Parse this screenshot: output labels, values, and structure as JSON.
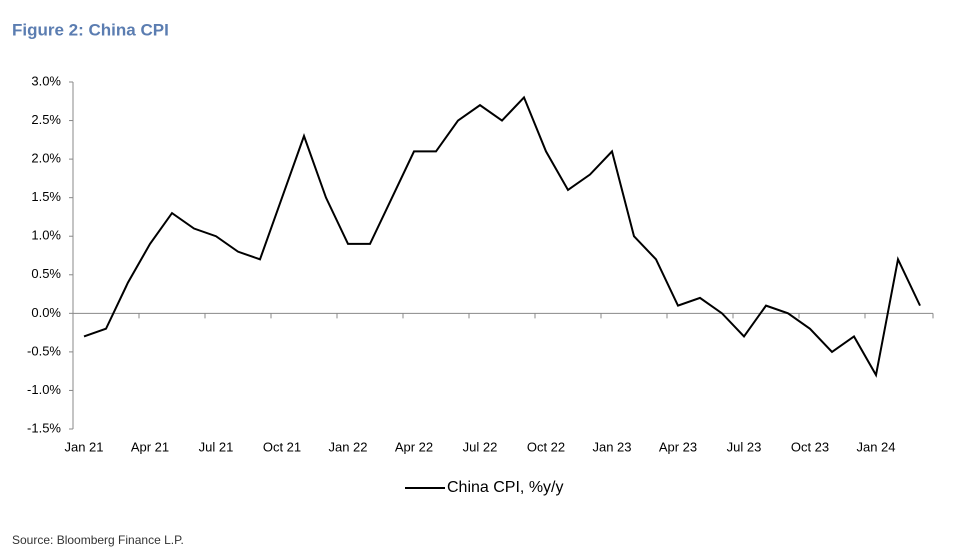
{
  "chart_data": {
    "type": "line",
    "title": "Figure 2: China CPI",
    "source": "Source: Bloomberg Finance L.P.",
    "categories": [
      "Jan 21",
      null,
      null,
      "Apr 21",
      null,
      null,
      "Jul 21",
      null,
      null,
      "Oct 21",
      null,
      null,
      "Jan 22",
      null,
      null,
      "Apr 22",
      null,
      null,
      "Jul 22",
      null,
      null,
      "Oct 22",
      null,
      null,
      "Jan 23",
      null,
      null,
      "Apr 23",
      null,
      null,
      "Jul 23",
      null,
      null,
      "Oct 23",
      null,
      null,
      "Jan 24",
      null,
      null
    ],
    "series": [
      {
        "name": "China CPI, %y/y",
        "color": "#000000",
        "values": [
          -0.3,
          -0.2,
          0.4,
          0.9,
          1.3,
          1.1,
          1.0,
          0.8,
          0.7,
          1.5,
          2.3,
          1.5,
          0.9,
          0.9,
          1.5,
          2.1,
          2.1,
          2.5,
          2.7,
          2.5,
          2.8,
          2.1,
          1.6,
          1.8,
          2.1,
          1.0,
          0.7,
          0.1,
          0.2,
          0.0,
          -0.3,
          0.1,
          0.0,
          -0.2,
          -0.5,
          -0.3,
          -0.8,
          0.7,
          0.1
        ]
      }
    ],
    "ylim": [
      -1.5,
      3.0
    ],
    "yticks": [
      {
        "value": -1.5,
        "label": "-1.5%"
      },
      {
        "value": -1.0,
        "label": "-1.0%"
      },
      {
        "value": -0.5,
        "label": "-0.5%"
      },
      {
        "value": 0,
        "label": "0.0%"
      },
      {
        "value": 0.5,
        "label": "0.5%"
      },
      {
        "value": 1.0,
        "label": "1.0%"
      },
      {
        "value": 1.5,
        "label": "1.5%"
      },
      {
        "value": 2.0,
        "label": "2.0%"
      },
      {
        "value": 2.5,
        "label": "2.5%"
      },
      {
        "value": 3.0,
        "label": "3.0%"
      }
    ],
    "grid": false,
    "legend": "bottom"
  }
}
